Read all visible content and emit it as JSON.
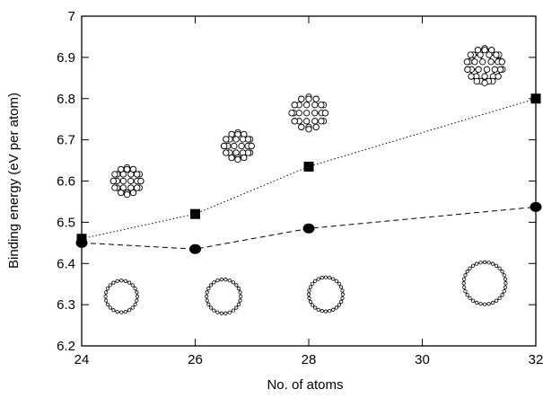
{
  "chart_data": {
    "type": "line",
    "xlabel": "No. of atoms",
    "ylabel": "Binding energy (eV per atom)",
    "xlim": [
      24,
      32
    ],
    "ylim": [
      6.2,
      7.0
    ],
    "xticks": [
      24,
      26,
      28,
      30,
      32
    ],
    "yticks": [
      6.2,
      6.3,
      6.4,
      6.5,
      6.6,
      6.7,
      6.8,
      6.9,
      7.0
    ],
    "xtick_labels": [
      "24",
      "26",
      "28",
      "30",
      "32"
    ],
    "ytick_labels": [
      "6.2",
      "6.3",
      "6.4",
      "6.5",
      "6.6",
      "6.7",
      "6.8",
      "6.9",
      "7"
    ],
    "grid": false,
    "series": [
      {
        "marker": "square",
        "line_style": "dotted",
        "color": "#000000",
        "x": [
          24,
          26,
          28,
          32
        ],
        "y": [
          6.46,
          6.52,
          6.635,
          6.8
        ]
      },
      {
        "marker": "circle",
        "line_style": "dashed",
        "color": "#000000",
        "x": [
          24,
          26,
          28,
          32
        ],
        "y": [
          6.45,
          6.435,
          6.485,
          6.537
        ]
      }
    ],
    "insets": {
      "cages": [
        {
          "atoms": 24,
          "x": 24.8,
          "y": 6.6,
          "r": 0.25
        },
        {
          "atoms": 26,
          "x": 26.75,
          "y": 6.685,
          "r": 0.25
        },
        {
          "atoms": 28,
          "x": 28.0,
          "y": 6.765,
          "r": 0.3
        },
        {
          "atoms": 32,
          "x": 31.1,
          "y": 6.88,
          "r": 0.32
        }
      ],
      "rings": [
        {
          "atoms": 24,
          "x": 24.7,
          "y": 6.32,
          "r": 0.28
        },
        {
          "atoms": 26,
          "x": 26.5,
          "y": 6.32,
          "r": 0.3
        },
        {
          "atoms": 28,
          "x": 28.3,
          "y": 6.325,
          "r": 0.3
        },
        {
          "atoms": 32,
          "x": 31.1,
          "y": 6.352,
          "r": 0.37
        }
      ]
    }
  }
}
